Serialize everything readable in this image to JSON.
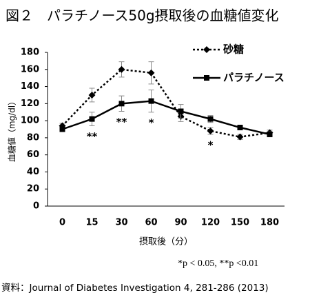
{
  "chart_data": {
    "type": "line",
    "title": "図２　パラチノース50g摂取後の血糖値変化",
    "x_label": "摂取後（分）",
    "y_label": "血糖値（mg/dl）",
    "categories": [
      "0",
      "15",
      "30",
      "60",
      "90",
      "120",
      "150",
      "180"
    ],
    "series": [
      {
        "name": "砂糖",
        "color": "#000000",
        "marker": "diamond",
        "line_style": "dotted",
        "values": [
          94,
          130,
          160,
          156,
          105,
          88,
          81,
          86
        ],
        "errors": [
          3,
          8,
          9,
          13,
          6,
          4,
          3,
          3
        ]
      },
      {
        "name": "パラチノース",
        "color": "#000000",
        "marker": "square",
        "line_style": "solid",
        "values": [
          90,
          102,
          120,
          123,
          111,
          102,
          92,
          84
        ],
        "errors": [
          2,
          8,
          9,
          13,
          8,
          4,
          2,
          3
        ]
      }
    ],
    "significance": [
      null,
      "**",
      "**",
      "*",
      null,
      "*",
      null,
      null
    ],
    "ylim": [
      0,
      180
    ],
    "yticks": [
      0,
      20,
      40,
      60,
      80,
      100,
      120,
      140,
      160,
      180
    ],
    "footnote": "*p < 0.05, **p <0.01",
    "source": "資料：Journal of Diabetes Investigation 4, 281-286 (2013)"
  }
}
